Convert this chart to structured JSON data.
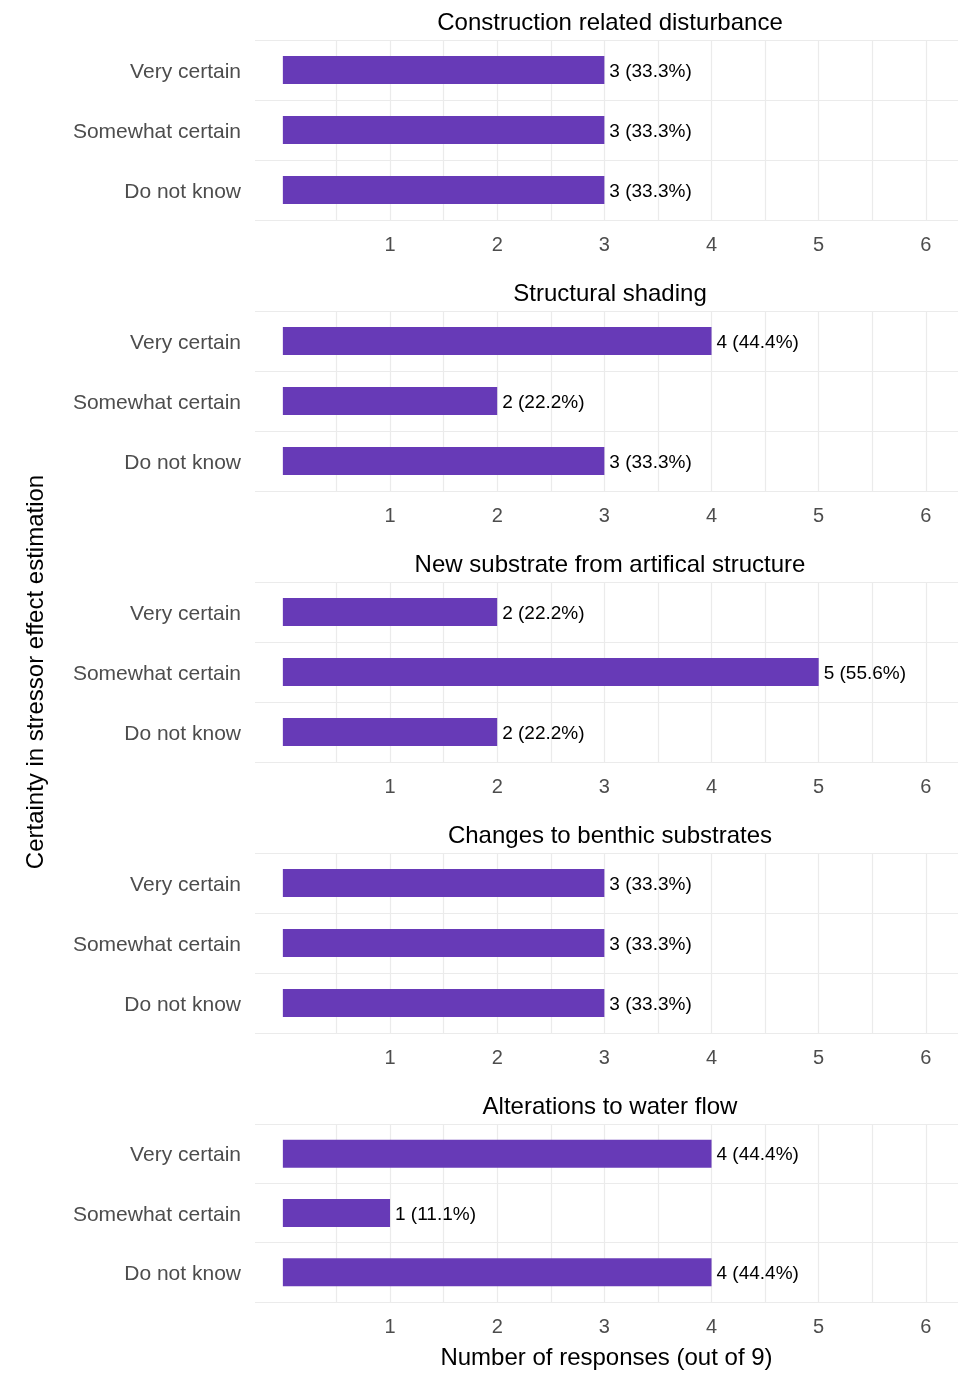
{
  "chart_data": [
    {
      "type": "bar",
      "orientation": "horizontal",
      "title": "Construction related disturbance",
      "categories": [
        "Very certain",
        "Somewhat certain",
        "Do not know"
      ],
      "values": [
        3,
        3,
        3
      ],
      "value_labels": [
        "3 (33.3%)",
        "3 (33.3%)",
        "3 (33.3%)"
      ],
      "color": "#673ab7",
      "xlim": [
        -0.26,
        6.3
      ],
      "xticks": [
        {
          "value": 0.5,
          "label": null
        },
        1,
        {
          "value": 1.5,
          "label": null
        },
        2,
        {
          "value": 2.5,
          "label": null
        },
        3,
        {
          "value": 3.5,
          "label": null
        },
        4,
        {
          "value": 4.5,
          "label": null
        },
        5,
        {
          "value": 5.5,
          "label": null
        },
        6
      ],
      "grid": true
    },
    {
      "type": "bar",
      "orientation": "horizontal",
      "title": "Structural shading",
      "categories": [
        "Very certain",
        "Somewhat certain",
        "Do not know"
      ],
      "values": [
        4,
        2,
        3
      ],
      "value_labels": [
        "4 (44.4%)",
        "2 (22.2%)",
        "3 (33.3%)"
      ],
      "color": "#673ab7",
      "xlim": [
        -0.26,
        6.3
      ],
      "xticks": [
        {
          "value": 0.5,
          "label": null
        },
        1,
        {
          "value": 1.5,
          "label": null
        },
        2,
        {
          "value": 2.5,
          "label": null
        },
        3,
        {
          "value": 3.5,
          "label": null
        },
        4,
        {
          "value": 4.5,
          "label": null
        },
        5,
        {
          "value": 5.5,
          "label": null
        },
        6
      ],
      "grid": true
    },
    {
      "type": "bar",
      "orientation": "horizontal",
      "title": "New substrate from artifical structure",
      "ylabel": "Certainty in stressor effect estimation",
      "categories": [
        "Very certain",
        "Somewhat certain",
        "Do not know"
      ],
      "values": [
        2,
        5,
        2
      ],
      "value_labels": [
        "2 (22.2%)",
        "5 (55.6%)",
        "2 (22.2%)"
      ],
      "color": "#673ab7",
      "xlim": [
        -0.26,
        6.3
      ],
      "xticks": [
        {
          "value": 0.5,
          "label": null
        },
        1,
        {
          "value": 1.5,
          "label": null
        },
        2,
        {
          "value": 2.5,
          "label": null
        },
        3,
        {
          "value": 3.5,
          "label": null
        },
        4,
        {
          "value": 4.5,
          "label": null
        },
        5,
        {
          "value": 5.5,
          "label": null
        },
        6
      ],
      "grid": true
    },
    {
      "type": "bar",
      "orientation": "horizontal",
      "title": "Changes to benthic substrates",
      "categories": [
        "Very certain",
        "Somewhat certain",
        "Do not know"
      ],
      "values": [
        3,
        3,
        3
      ],
      "value_labels": [
        "3 (33.3%)",
        "3 (33.3%)",
        "3 (33.3%)"
      ],
      "color": "#673ab7",
      "xlim": [
        -0.26,
        6.3
      ],
      "xticks": [
        {
          "value": 0.5,
          "label": null
        },
        1,
        {
          "value": 1.5,
          "label": null
        },
        2,
        {
          "value": 2.5,
          "label": null
        },
        3,
        {
          "value": 3.5,
          "label": null
        },
        4,
        {
          "value": 4.5,
          "label": null
        },
        5,
        {
          "value": 5.5,
          "label": null
        },
        6
      ],
      "grid": true
    },
    {
      "type": "bar",
      "orientation": "horizontal",
      "title": "Alterations to water flow",
      "xlabel": "Number of responses (out of 9)",
      "categories": [
        "Very certain",
        "Somewhat certain",
        "Do not know"
      ],
      "values": [
        4,
        1,
        4
      ],
      "value_labels": [
        "4 (44.4%)",
        "1 (11.1%)",
        "4 (44.4%)"
      ],
      "color": "#673ab7",
      "xlim": [
        -0.26,
        6.3
      ],
      "xticks": [
        {
          "value": 0.5,
          "label": null
        },
        1,
        {
          "value": 1.5,
          "label": null
        },
        2,
        {
          "value": 2.5,
          "label": null
        },
        3,
        {
          "value": 3.5,
          "label": null
        },
        4,
        {
          "value": 4.5,
          "label": null
        },
        5,
        {
          "value": 5.5,
          "label": null
        },
        6
      ],
      "grid": true
    }
  ]
}
